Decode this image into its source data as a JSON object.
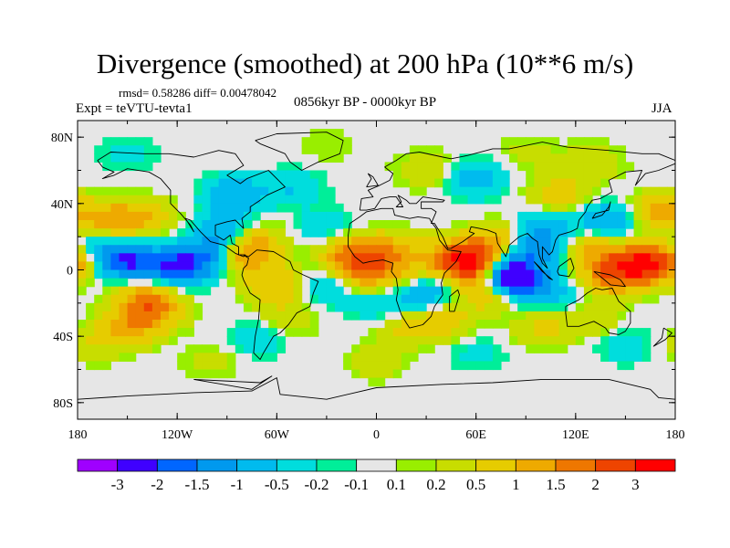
{
  "title": "Divergence (smoothed) at 200 hPa (10**6 m/s)",
  "stats": "rmsd= 0.58286 diff= 0.00478042",
  "experiment": "Expt = teVTU-tevta1",
  "period": "0856kyr BP - 0000kyr BP",
  "season": "JJA",
  "map": {
    "lat_range": [
      -90,
      90
    ],
    "lon_range": [
      -180,
      180
    ],
    "lat_ticks": [
      {
        "value": 80,
        "label": "80N"
      },
      {
        "value": 40,
        "label": "40N"
      },
      {
        "value": 0,
        "label": "0"
      },
      {
        "value": -40,
        "label": "40S"
      },
      {
        "value": -80,
        "label": "80S"
      }
    ],
    "lon_ticks": [
      {
        "value": -180,
        "label": "180"
      },
      {
        "value": -120,
        "label": "120W"
      },
      {
        "value": -60,
        "label": "60W"
      },
      {
        "value": 0,
        "label": "0"
      },
      {
        "value": 60,
        "label": "60E"
      },
      {
        "value": 120,
        "label": "120E"
      },
      {
        "value": 180,
        "label": "180"
      }
    ],
    "background_color": "#e6e6e6"
  },
  "colorbar": {
    "colors": [
      "#9f00ff",
      "#3f00ff",
      "#0066ff",
      "#0099ee",
      "#00bbee",
      "#00dddd",
      "#00ee99",
      "#e6e6e6",
      "#99ee00",
      "#c8dd00",
      "#e6cc00",
      "#eeaa00",
      "#ee7700",
      "#ee4400",
      "#ff0000"
    ],
    "labels": [
      "-3",
      "-2",
      "-1.5",
      "-1",
      "-0.5",
      "-0.2",
      "-0.1",
      "0.1",
      "0.2",
      "0.5",
      "1",
      "1.5",
      "2",
      "3"
    ]
  },
  "fields": [
    {
      "lon": -150,
      "lat": 5,
      "value": -2.0
    },
    {
      "lon": -120,
      "lat": 2,
      "value": -2.0
    },
    {
      "lon": -100,
      "lat": 8,
      "value": -1.2
    },
    {
      "lon": -160,
      "lat": 30,
      "value": 1.2
    },
    {
      "lon": -140,
      "lat": 32,
      "value": 0.8
    },
    {
      "lon": -135,
      "lat": -25,
      "value": 1.4
    },
    {
      "lon": -140,
      "lat": -15,
      "value": 1.0
    },
    {
      "lon": -150,
      "lat": -35,
      "value": 1.0
    },
    {
      "lon": -80,
      "lat": 8,
      "value": 1.4
    },
    {
      "lon": -75,
      "lat": 18,
      "value": 1.0
    },
    {
      "lon": -90,
      "lat": 22,
      "value": -1.2
    },
    {
      "lon": -85,
      "lat": 45,
      "value": -1.0
    },
    {
      "lon": -50,
      "lat": 50,
      "value": -0.5
    },
    {
      "lon": -60,
      "lat": -10,
      "value": 1.0
    },
    {
      "lon": -55,
      "lat": -30,
      "value": 0.5
    },
    {
      "lon": -70,
      "lat": -40,
      "value": -0.5
    },
    {
      "lon": -30,
      "lat": 25,
      "value": -0.5
    },
    {
      "lon": -15,
      "lat": 10,
      "value": 1.6
    },
    {
      "lon": -5,
      "lat": -2,
      "value": 1.5
    },
    {
      "lon": 10,
      "lat": 12,
      "value": 1.0
    },
    {
      "lon": 20,
      "lat": 0,
      "value": 0.5
    },
    {
      "lon": 30,
      "lat": -15,
      "value": -1.0
    },
    {
      "lon": 0,
      "lat": -20,
      "value": -0.5
    },
    {
      "lon": 20,
      "lat": -35,
      "value": 0.6
    },
    {
      "lon": 40,
      "lat": -30,
      "value": 0.8
    },
    {
      "lon": 60,
      "lat": 2,
      "value": 2.6
    },
    {
      "lon": 52,
      "lat": 8,
      "value": 2.0
    },
    {
      "lon": 75,
      "lat": -2,
      "value": -2.6
    },
    {
      "lon": 85,
      "lat": -8,
      "value": -2.0
    },
    {
      "lon": 70,
      "lat": -12,
      "value": 1.6
    },
    {
      "lon": 95,
      "lat": 12,
      "value": -1.2
    },
    {
      "lon": 100,
      "lat": 25,
      "value": -1.0
    },
    {
      "lon": 75,
      "lat": 18,
      "value": 1.0
    },
    {
      "lon": 130,
      "lat": 12,
      "value": 1.0
    },
    {
      "lon": 155,
      "lat": 2,
      "value": 2.2
    },
    {
      "lon": 170,
      "lat": 5,
      "value": 2.0
    },
    {
      "lon": 140,
      "lat": -5,
      "value": 1.2
    },
    {
      "lon": 140,
      "lat": 30,
      "value": -1.0
    },
    {
      "lon": 170,
      "lat": 35,
      "value": 1.2
    },
    {
      "lon": 110,
      "lat": 45,
      "value": 0.8
    },
    {
      "lon": 60,
      "lat": 55,
      "value": -0.8
    },
    {
      "lon": 30,
      "lat": 60,
      "value": 0.5
    },
    {
      "lon": 90,
      "lat": 70,
      "value": 0.3
    },
    {
      "lon": 130,
      "lat": 65,
      "value": 0.5
    },
    {
      "lon": -150,
      "lat": 70,
      "value": -0.3
    },
    {
      "lon": -30,
      "lat": 75,
      "value": 0.2
    },
    {
      "lon": 0,
      "lat": -55,
      "value": 0.4
    },
    {
      "lon": 60,
      "lat": -50,
      "value": -0.3
    },
    {
      "lon": 130,
      "lat": -30,
      "value": 0.5
    },
    {
      "lon": 150,
      "lat": -45,
      "value": -0.4
    },
    {
      "lon": -100,
      "lat": -55,
      "value": 0.3
    },
    {
      "lon": -170,
      "lat": -45,
      "value": 0.4
    },
    {
      "lon": 100,
      "lat": -35,
      "value": 0.6
    },
    {
      "lon": 110,
      "lat": -15,
      "value": -0.5
    },
    {
      "lon": -30,
      "lat": -10,
      "value": -0.6
    },
    {
      "lon": -170,
      "lat": 15,
      "value": -0.6
    }
  ]
}
